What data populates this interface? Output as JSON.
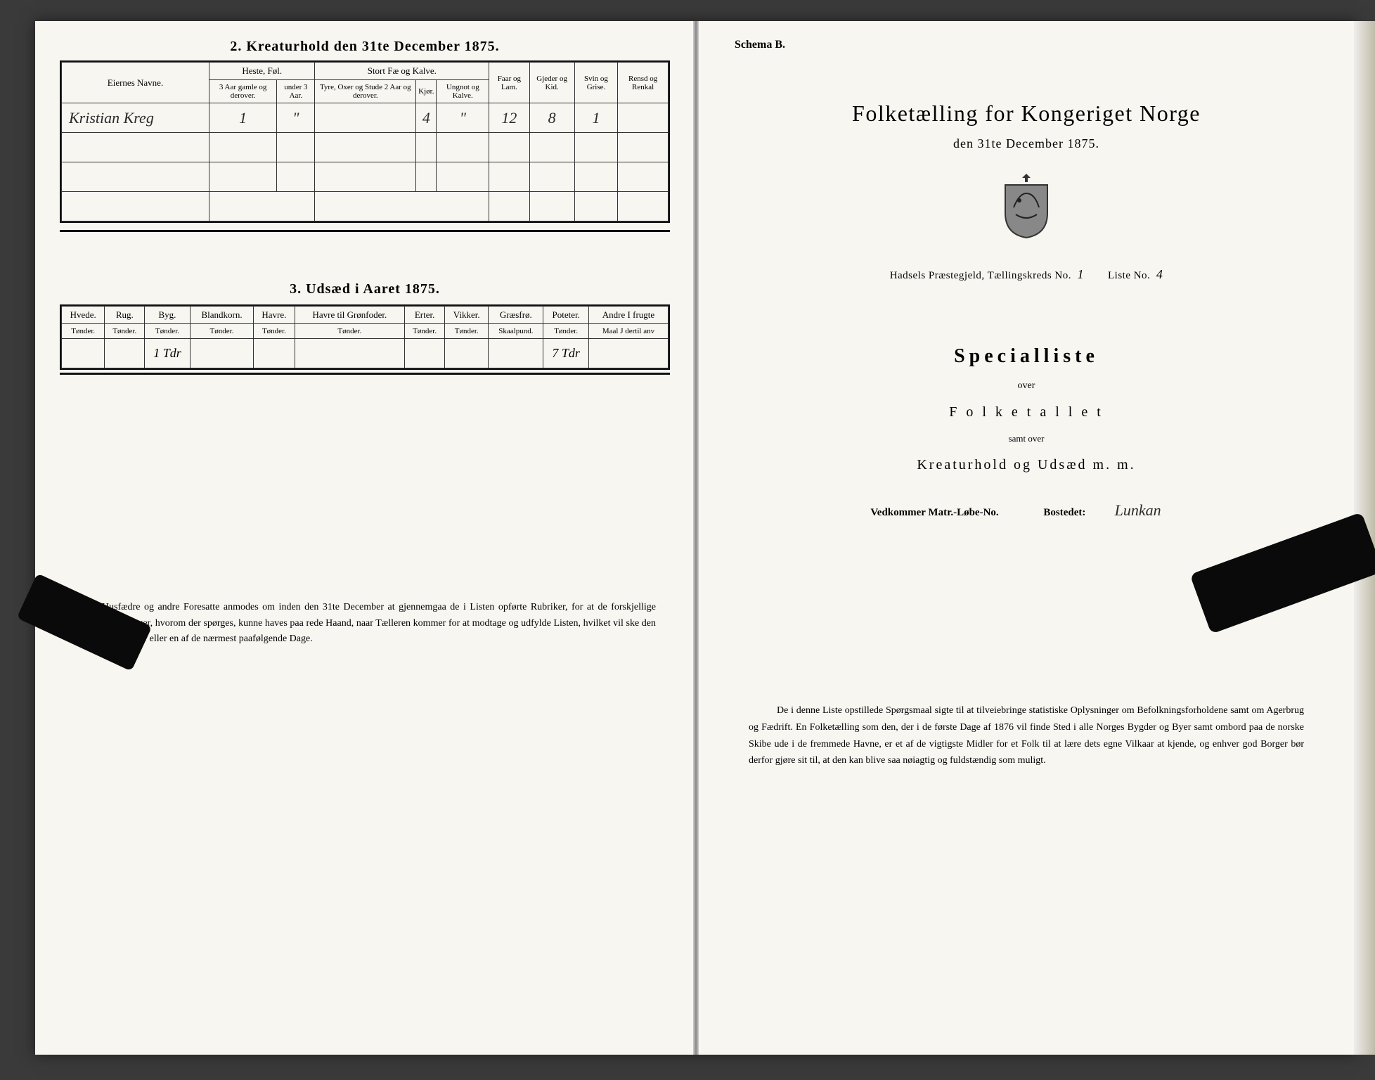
{
  "left": {
    "section2_title": "2.  Kreaturhold den 31te December 1875.",
    "tbl2": {
      "col_owner": "Eiernes Navne.",
      "grp_heste": "Heste, Føl.",
      "grp_stort": "Stort Fæ og Kalve.",
      "col_faar": "Faar og Lam.",
      "col_gjeder": "Gjeder og Kid.",
      "col_svin": "Svin og Grise.",
      "col_rensd": "Rensd og Renkal",
      "sub_3aar": "3 Aar gamle og derover.",
      "sub_under3": "under 3 Aar.",
      "sub_tyre": "Tyre, Oxer og Stude 2 Aar og derover.",
      "sub_kjor": "Kjør.",
      "sub_ungnot": "Ungnot og Kalve.",
      "row": {
        "owner": "Kristian  Kreg",
        "h1": "1",
        "h2": "\"",
        "s1": "",
        "s2": "4",
        "s3": "\"",
        "faar": "12",
        "gjeder": "8",
        "svin": "1",
        "rensd": ""
      }
    },
    "section3_title": "3.   Udsæd i Aaret 1875.",
    "tbl3": {
      "cols": [
        {
          "h": "Hvede.",
          "s": "Tønder."
        },
        {
          "h": "Rug.",
          "s": "Tønder."
        },
        {
          "h": "Byg.",
          "s": "Tønder."
        },
        {
          "h": "Blandkorn.",
          "s": "Tønder."
        },
        {
          "h": "Havre.",
          "s": "Tønder."
        },
        {
          "h": "Havre til Grønfoder.",
          "s": "Tønder."
        },
        {
          "h": "Erter.",
          "s": "Tønder."
        },
        {
          "h": "Vikker.",
          "s": "Tønder."
        },
        {
          "h": "Græsfrø.",
          "s": "Skaalpund."
        },
        {
          "h": "Poteter.",
          "s": "Tønder."
        },
        {
          "h": "Andre I frugte",
          "s": "Maal J dertil anv"
        }
      ],
      "row": [
        "",
        "",
        "1 Tdr",
        "",
        "",
        "",
        "",
        "",
        "",
        "7 Tdr",
        ""
      ]
    },
    "footnote": "Husfædre og andre Foresatte anmodes om inden den 31te December at gjennemgaa de i Listen opførte Rubriker, for at de forskjellige Oplysninger, hvorom der spørges, kunne haves paa rede Haand, naar Tælleren kommer for at modtage og udfylde Listen, hvilket vil ske den 3die Januar eller en af de nærmest paafølgende Dage."
  },
  "right": {
    "schema": "Schema B.",
    "title": "Folketælling for Kongeriget Norge",
    "subtitle": "den 31te December 1875.",
    "line_info_pre": "Hadsels Præstegjeld,  Tællingskreds No.",
    "kreds_no": "1",
    "liste_label": "Liste No.",
    "liste_no": "4",
    "special": "Specialliste",
    "over": "over",
    "folketallet": "F o l k e t a l l e t",
    "samt": "samt over",
    "kreatur": "Kreaturhold  og  Udsæd  m.  m.",
    "vedk": "Vedkommer Matr.-Løbe-No.",
    "bostedet_label": "Bostedet:",
    "bostedet": "Lunkan",
    "bottom": "De i denne Liste opstillede Spørgsmaal sigte til at tilveiebringe statistiske Oplysninger om Befolkningsforholdene samt om Agerbrug og Fædrift.   En Folketælling som den, der i de første Dage af 1876 vil finde Sted i alle Norges Bygder og Byer samt ombord paa de norske Skibe ude i de fremmede Havne, er et af de vigtigste Midler for et Folk til at lære dets egne Vilkaar at kjende, og enhver god Borger bør derfor gjøre sit til, at den kan blive saa nøiagtig og fuldstændig som muligt."
  }
}
